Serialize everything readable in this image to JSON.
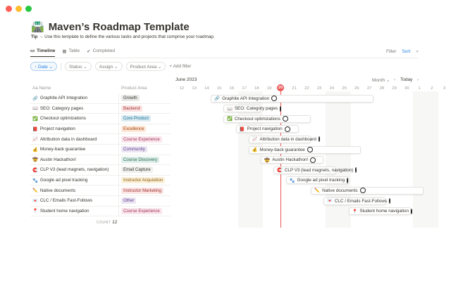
{
  "window": {
    "controls": [
      "close",
      "minimize",
      "maximize"
    ]
  },
  "page": {
    "icon": "🛣️",
    "title": "Maven’s Roadmap Template",
    "tip_label": "Tip",
    "tip_text": "→ Use this template to define the various tasks and projects that comprise your roadmap."
  },
  "tabs": [
    {
      "label": "Timeline",
      "icon": "timeline-icon",
      "active": true
    },
    {
      "label": "Table",
      "icon": "table-icon"
    },
    {
      "label": "Completed",
      "icon": "check-circle-icon"
    }
  ],
  "toolbar": {
    "filter": "Filter",
    "sort": "Sort",
    "search_icon": "search-icon"
  },
  "filters": {
    "date": "↑ Date ⌄",
    "status": "Status ⌄",
    "assign": "Assign ⌄",
    "product_area": "Product Area ⌄",
    "add_filter": "+ Add filter"
  },
  "timeline": {
    "month": "June 2023",
    "scale": "Month ⌄",
    "today": "Today",
    "today_day": "20",
    "today_color": "#eb5757",
    "days": [
      "12",
      "13",
      "14",
      "15",
      "16",
      "17",
      "18",
      "19",
      "20",
      "21",
      "22",
      "23",
      "24",
      "25",
      "26",
      "27",
      "28",
      "29",
      "30",
      "1",
      "2",
      "3"
    ],
    "weekends": [
      "17",
      "18",
      "24",
      "25",
      "1",
      "2"
    ]
  },
  "table": {
    "name_header": "Aa Name",
    "area_header": "Product Area",
    "count_label": "COUNT",
    "count": "12"
  },
  "rows": [
    {
      "icon": "🔗",
      "name": "Graphite API Integration",
      "area": "Growth",
      "bg": "#e9e9e7",
      "fg": "#37352f",
      "start": 3,
      "end": 15
    },
    {
      "icon": "📖",
      "name": "SEO: Category pages",
      "area": "Backend",
      "bg": "#fbe4e4",
      "fg": "#9f2f2d",
      "start": 4,
      "end": 6
    },
    {
      "icon": "✅",
      "name": "Checkout optimizations",
      "area": "Core Product",
      "bg": "#ddebf1",
      "fg": "#0b6e99",
      "start": 4,
      "end": 10
    },
    {
      "icon": "📕",
      "name": "Project navigation",
      "area": "Excellence",
      "bg": "#fde6d6",
      "fg": "#a0450f",
      "start": 5,
      "end": 9
    },
    {
      "icon": "📈",
      "name": "Attribution data in dashboard",
      "area": "Course Experience",
      "bg": "#f9e6ec",
      "fg": "#a3335a",
      "start": 6,
      "end": 10
    },
    {
      "icon": "💰",
      "name": "Money-back guarantee",
      "area": "Community",
      "bg": "#ebe5f3",
      "fg": "#5d3d8b",
      "start": 6,
      "end": 14
    },
    {
      "icon": "🤠",
      "name": "Austin Hackathon!",
      "area": "Course Discovery",
      "bg": "#ddedea",
      "fg": "#2b6b4a",
      "start": 7,
      "end": 11
    },
    {
      "icon": "🧲",
      "name": "CLP V3 (lead magnets, navigation)",
      "area": "Email Capture",
      "bg": "#efefed",
      "fg": "#37352f",
      "start": 8,
      "end": 12
    },
    {
      "icon": "🐾",
      "name": "Google ad pixel tracking",
      "area": "Instructor Acquisition",
      "bg": "#fbf0d9",
      "fg": "#8a5a0b",
      "start": 9,
      "end": 13
    },
    {
      "icon": "✏️",
      "name": "Native documents",
      "area": "Instructor Marketing",
      "bg": "#fbe4e4",
      "fg": "#9f2f2d",
      "start": 11,
      "end": 19
    },
    {
      "icon": "💌",
      "name": "CLC / Emails Fast-Follows",
      "area": "Other",
      "bg": "#ebe5f3",
      "fg": "#5d3d8b",
      "start": 12,
      "end": 16
    },
    {
      "icon": "📍",
      "name": "Student home navigation",
      "area": "Course Experience",
      "bg": "#f9e6ec",
      "fg": "#a3335a",
      "start": 14,
      "end": 18
    }
  ]
}
